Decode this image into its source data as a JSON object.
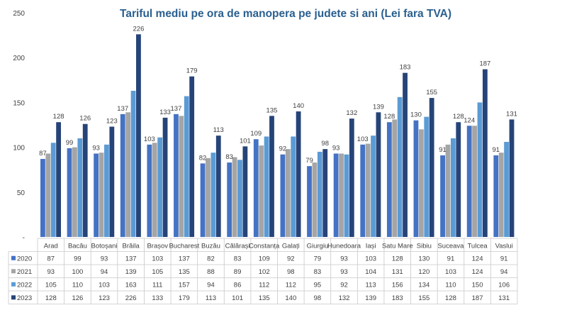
{
  "chart_data": {
    "type": "bar",
    "title": "Tariful mediu pe ora de manopera pe judete si ani (Lei fara TVA)",
    "xlabel": "",
    "ylabel": "",
    "ylim": [
      0,
      250
    ],
    "yticks": [
      {
        "value": 0,
        "label": "-"
      },
      {
        "value": 50,
        "label": "50"
      },
      {
        "value": 100,
        "label": "100"
      },
      {
        "value": 150,
        "label": "150"
      },
      {
        "value": 200,
        "label": "200"
      },
      {
        "value": 250,
        "label": "250"
      }
    ],
    "grid": false,
    "legend": "data-table-left",
    "categories": [
      "Arad",
      "Bacău",
      "Botoșani",
      "Brăila",
      "Brașov",
      "Bucharest",
      "Buzău",
      "Călărași",
      "Constanța",
      "Galați",
      "Giurgiu",
      "Hunedoara",
      "Iași",
      "Satu Mare",
      "Sibiu",
      "Suceava",
      "Tulcea",
      "Vaslui"
    ],
    "series": [
      {
        "name": "2020",
        "color": "#4472c4",
        "values": [
          87,
          99,
          93,
          137,
          103,
          137,
          82,
          83,
          109,
          92,
          79,
          93,
          103,
          128,
          130,
          91,
          124,
          91
        ]
      },
      {
        "name": "2021",
        "color": "#a5a5a5",
        "values": [
          93,
          100,
          94,
          139,
          105,
          135,
          88,
          89,
          102,
          98,
          83,
          93,
          104,
          131,
          120,
          103,
          124,
          94
        ]
      },
      {
        "name": "2022",
        "color": "#5b9bd5",
        "values": [
          105,
          110,
          103,
          163,
          111,
          157,
          94,
          86,
          112,
          112,
          95,
          92,
          113,
          156,
          134,
          110,
          150,
          106
        ]
      },
      {
        "name": "2023",
        "color": "#264478",
        "values": [
          128,
          126,
          123,
          226,
          133,
          179,
          113,
          101,
          135,
          140,
          98,
          132,
          139,
          183,
          155,
          128,
          187,
          131
        ]
      }
    ],
    "labeled_series": [
      "2020",
      "2023"
    ]
  }
}
